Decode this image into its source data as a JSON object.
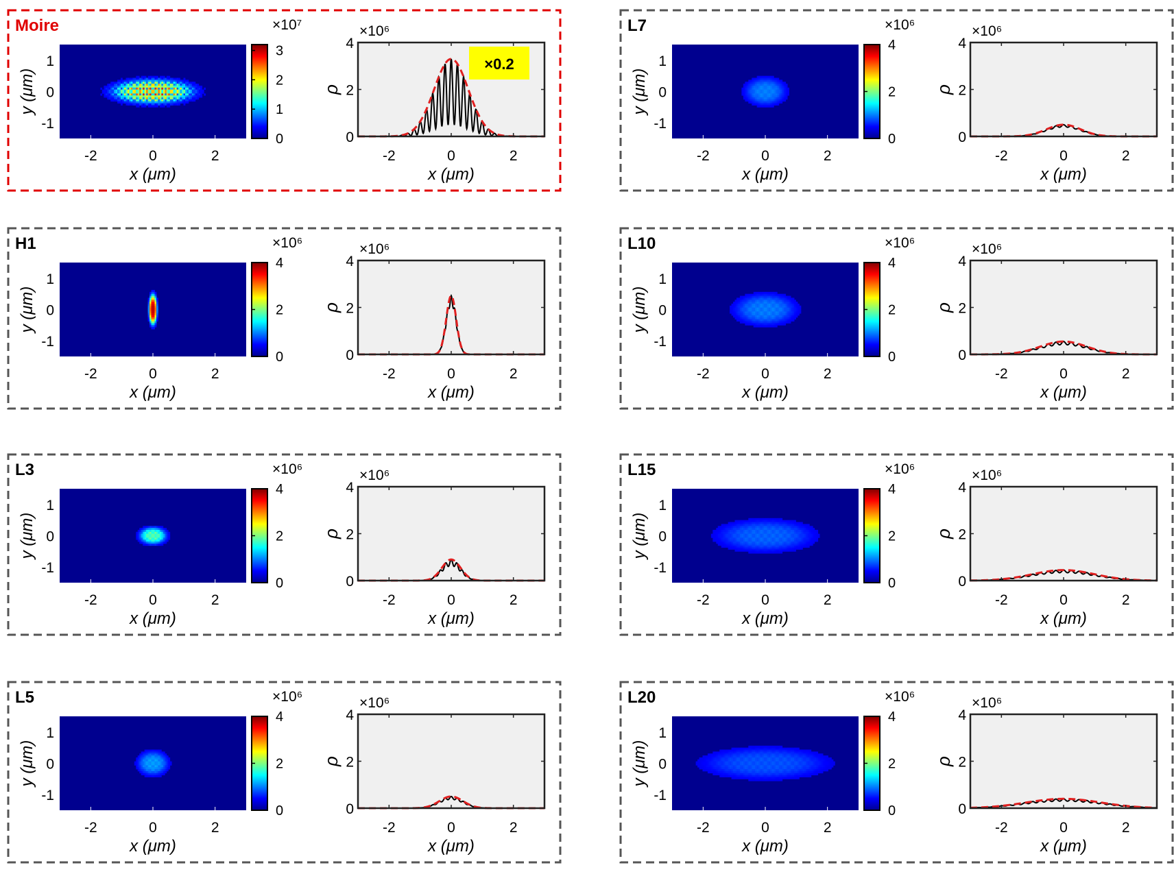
{
  "figure": {
    "colors": {
      "moire_frame": "#e00000",
      "frame": "#555555",
      "heatmap_bg": "#00008f",
      "plot_bg": "#f0f0f0",
      "fit_curve": "#e02020",
      "data_curve": "#000000",
      "badge_bg": "#ffff00"
    },
    "colorbar_colormap": "jet",
    "xlabel": "x (μm)",
    "ylabel_map": "y (μm)",
    "ylabel_profile": "ρ"
  },
  "chart_data": [
    {
      "label": "Moire",
      "type": "heatmap+line",
      "highlight": true,
      "cbar_multiplier": "×10⁷",
      "cbar_ticks": [
        "0",
        "1",
        "2",
        "3"
      ],
      "cbar_max": 3.2,
      "profile_multiplier": "×10⁶",
      "profile_ylim": [
        0,
        4
      ],
      "profile_yticks": [
        "0",
        "2",
        "4"
      ],
      "xticks": [
        "-2",
        "0",
        "2"
      ],
      "yticks": [
        "1",
        "0",
        "-1"
      ],
      "xlim": [
        -3,
        3
      ],
      "ylim_map": [
        -1.5,
        1.5
      ],
      "peak": 3.3,
      "width": 0.55,
      "oscillation_period": 0.2,
      "oscillation_depth": 0.85,
      "spot_rx": 1.2,
      "spot_ry": 0.35,
      "spot_peak_fraction": 0.9,
      "annotation": "×0.2"
    },
    {
      "label": "L7",
      "type": "heatmap+line",
      "highlight": false,
      "cbar_multiplier": "×10⁶",
      "cbar_ticks": [
        "0",
        "2",
        "4"
      ],
      "cbar_max": 4,
      "profile_multiplier": "×10⁶",
      "profile_ylim": [
        0,
        4
      ],
      "profile_yticks": [
        "0",
        "2",
        "4"
      ],
      "xticks": [
        "-2",
        "0",
        "2"
      ],
      "yticks": [
        "1",
        "0",
        "-1"
      ],
      "xlim": [
        -3,
        3
      ],
      "ylim_map": [
        -1.5,
        1.5
      ],
      "peak": 0.5,
      "width": 0.55,
      "oscillation_period": 0.25,
      "oscillation_depth": 0.2,
      "spot_rx": 0.6,
      "spot_ry": 0.4,
      "spot_peak_fraction": 0.18
    },
    {
      "label": "H1",
      "type": "heatmap+line",
      "highlight": false,
      "cbar_multiplier": "×10⁶",
      "cbar_ticks": [
        "0",
        "2",
        "4"
      ],
      "cbar_max": 4,
      "profile_multiplier": "×10⁶",
      "profile_ylim": [
        0,
        4
      ],
      "profile_yticks": [
        "0",
        "2",
        "4"
      ],
      "xticks": [
        "-2",
        "0",
        "2"
      ],
      "yticks": [
        "1",
        "0",
        "-1"
      ],
      "xlim": [
        -3,
        3
      ],
      "ylim_map": [
        -1.5,
        1.5
      ],
      "peak": 2.5,
      "width": 0.16,
      "oscillation_period": 0.12,
      "oscillation_depth": 0.15,
      "spot_rx": 0.12,
      "spot_ry": 0.45,
      "spot_peak_fraction": 1.0
    },
    {
      "label": "L10",
      "type": "heatmap+line",
      "highlight": false,
      "cbar_multiplier": "×10⁶",
      "cbar_ticks": [
        "0",
        "2",
        "4"
      ],
      "cbar_max": 4,
      "profile_multiplier": "×10⁶",
      "profile_ylim": [
        0,
        4
      ],
      "profile_yticks": [
        "0",
        "2",
        "4"
      ],
      "xticks": [
        "-2",
        "0",
        "2"
      ],
      "yticks": [
        "1",
        "0",
        "-1"
      ],
      "xlim": [
        -3,
        3
      ],
      "ylim_map": [
        -1.5,
        1.5
      ],
      "peak": 0.55,
      "width": 0.75,
      "oscillation_period": 0.25,
      "oscillation_depth": 0.25,
      "spot_rx": 0.9,
      "spot_ry": 0.45,
      "spot_peak_fraction": 0.18
    },
    {
      "label": "L3",
      "type": "heatmap+line",
      "highlight": false,
      "cbar_multiplier": "×10⁶",
      "cbar_ticks": [
        "0",
        "2",
        "4"
      ],
      "cbar_max": 4,
      "profile_multiplier": "×10⁶",
      "profile_ylim": [
        0,
        4
      ],
      "profile_yticks": [
        "0",
        "2",
        "4"
      ],
      "xticks": [
        "-2",
        "0",
        "2"
      ],
      "yticks": [
        "1",
        "0",
        "-1"
      ],
      "xlim": [
        -3,
        3
      ],
      "ylim_map": [
        -1.5,
        1.5
      ],
      "peak": 0.9,
      "width": 0.3,
      "oscillation_period": 0.18,
      "oscillation_depth": 0.3,
      "spot_rx": 0.4,
      "spot_ry": 0.25,
      "spot_peak_fraction": 0.45
    },
    {
      "label": "L15",
      "type": "heatmap+line",
      "highlight": false,
      "cbar_multiplier": "×10⁶",
      "cbar_ticks": [
        "0",
        "2",
        "4"
      ],
      "cbar_max": 4,
      "profile_multiplier": "×10⁶",
      "profile_ylim": [
        0,
        4
      ],
      "profile_yticks": [
        "0",
        "2",
        "4"
      ],
      "xticks": [
        "-2",
        "0",
        "2"
      ],
      "yticks": [
        "1",
        "0",
        "-1"
      ],
      "xlim": [
        -3,
        3
      ],
      "ylim_map": [
        -1.5,
        1.5
      ],
      "peak": 0.45,
      "width": 1.0,
      "oscillation_period": 0.25,
      "oscillation_depth": 0.25,
      "spot_rx": 1.4,
      "spot_ry": 0.45,
      "spot_peak_fraction": 0.15
    },
    {
      "label": "L5",
      "type": "heatmap+line",
      "highlight": false,
      "cbar_multiplier": "×10⁶",
      "cbar_ticks": [
        "0",
        "2",
        "4"
      ],
      "cbar_max": 4,
      "profile_multiplier": "×10⁶",
      "profile_ylim": [
        0,
        4
      ],
      "profile_yticks": [
        "0",
        "2",
        "4"
      ],
      "xticks": [
        "-2",
        "0",
        "2"
      ],
      "yticks": [
        "1",
        "0",
        "-1"
      ],
      "xlim": [
        -3,
        3
      ],
      "ylim_map": [
        -1.5,
        1.5
      ],
      "peak": 0.5,
      "width": 0.38,
      "oscillation_period": 0.2,
      "oscillation_depth": 0.25,
      "spot_rx": 0.45,
      "spot_ry": 0.35,
      "spot_peak_fraction": 0.22
    },
    {
      "label": "L20",
      "type": "heatmap+line",
      "highlight": false,
      "cbar_multiplier": "×10⁶",
      "cbar_ticks": [
        "0",
        "2",
        "4"
      ],
      "cbar_max": 4,
      "profile_multiplier": "×10⁶",
      "profile_ylim": [
        0,
        4
      ],
      "profile_yticks": [
        "0",
        "2",
        "4"
      ],
      "xticks": [
        "-2",
        "0",
        "2"
      ],
      "yticks": [
        "1",
        "0",
        "-1"
      ],
      "xlim": [
        -3,
        3
      ],
      "ylim_map": [
        -1.5,
        1.5
      ],
      "peak": 0.4,
      "width": 1.2,
      "oscillation_period": 0.25,
      "oscillation_depth": 0.25,
      "spot_rx": 1.8,
      "spot_ry": 0.45,
      "spot_peak_fraction": 0.13
    }
  ]
}
